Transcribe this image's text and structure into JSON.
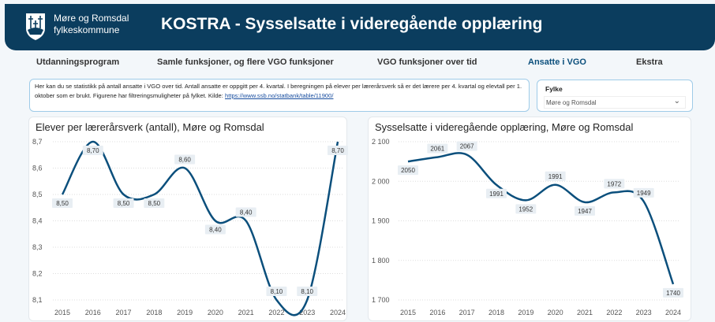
{
  "header": {
    "org_line1": "Møre og Romsdal",
    "org_line2": "fylkeskommune",
    "title": "KOSTRA - Sysselsatte i videregående opplæring"
  },
  "tabs": [
    {
      "label": "Utdanningsprogram"
    },
    {
      "label": "Samle funksjoner, og flere VGO funksjoner"
    },
    {
      "label": "VGO funksjoner over tid"
    },
    {
      "label": "Ansatte i VGO",
      "active": true
    },
    {
      "label": "Ekstra"
    }
  ],
  "info": {
    "text": "Her kan du se statistikk på antall ansatte i VGO over tid. Antall ansatte er oppgitt per 4. kvartal. I beregningen på elever per lærerårsverk så er det lærere per 4. kvartal og elevtall per 1. oktober som er brukt. Figurene har filtreringsmuligheter på fylket. Kilde: ",
    "link": "https://www.ssb.no/statbank/table/11900/"
  },
  "filter": {
    "label": "Fylke",
    "value": "Møre og Romsdal"
  },
  "colors": {
    "header": "#0b3d5e",
    "line": "#0b4f7c",
    "accent": "#0b4f7c"
  },
  "chart_data": [
    {
      "type": "line",
      "title": "Elever per lærerårsverk (antall), Møre og Romsdal",
      "x": [
        "2015",
        "2016",
        "2017",
        "2018",
        "2019",
        "2020",
        "2021",
        "2022",
        "2023",
        "2024"
      ],
      "values": [
        8.5,
        8.7,
        8.5,
        8.5,
        8.6,
        8.4,
        8.4,
        8.1,
        8.1,
        8.7
      ],
      "labels": [
        "8,50",
        "8,70",
        "8,50",
        "8,50",
        "8,60",
        "8,40",
        "8,40",
        "8,10",
        "8,10",
        "8,70"
      ],
      "ylim": [
        8.1,
        8.7
      ],
      "yticks": [
        "8,1",
        "8,2",
        "8,3",
        "8,4",
        "8,5",
        "8,6",
        "8,7"
      ],
      "grid": true
    },
    {
      "type": "line",
      "title": "Sysselsatte i videregående opplæring, Møre og Romsdal",
      "x": [
        "2015",
        "2016",
        "2017",
        "2018",
        "2019",
        "2020",
        "2021",
        "2022",
        "2023",
        "2024"
      ],
      "values": [
        2050,
        2061,
        2067,
        1991,
        1952,
        1991,
        1947,
        1972,
        1949,
        1740
      ],
      "labels": [
        "2050",
        "2061",
        "2067",
        "1991",
        "1952",
        "1991",
        "1947",
        "1972",
        "1949",
        "1740"
      ],
      "ylim": [
        1700,
        2100
      ],
      "yticks": [
        "1 700",
        "1 800",
        "1 900",
        "2 000",
        "2 100"
      ],
      "grid": true
    }
  ]
}
